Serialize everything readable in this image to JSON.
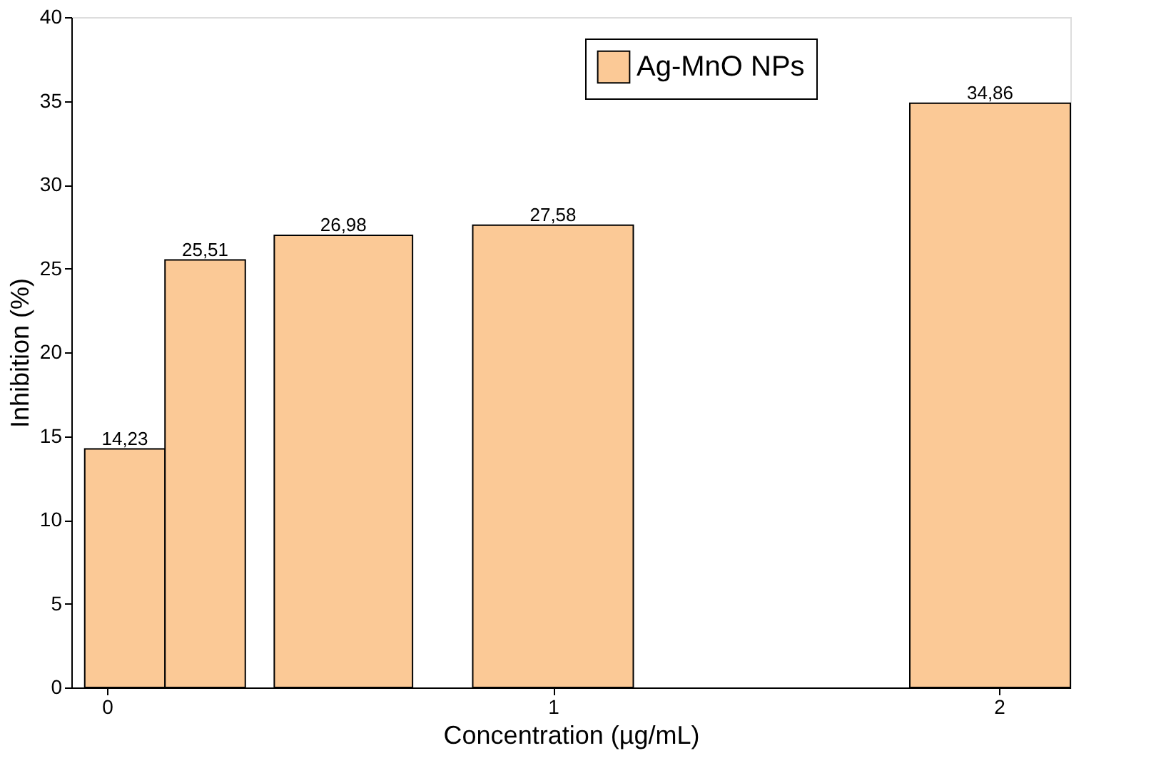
{
  "chart_data": {
    "type": "bar",
    "xlabel": "Concentration (µg/mL)",
    "ylabel": "Inhibition (%)",
    "x": [
      0.04,
      0.22,
      0.53,
      1.0,
      1.98
    ],
    "series": [
      {
        "name": "Ag-MnO NPs",
        "color": "#fbc996",
        "values": [
          14.23,
          25.51,
          26.98,
          27.58,
          34.86
        ],
        "value_labels": [
          "14,23",
          "25,51",
          "26,98",
          "27,58",
          "34,86"
        ]
      }
    ],
    "xlim": [
      -0.08,
      2.16
    ],
    "xticks": [
      0,
      1,
      2
    ],
    "ylim": [
      0,
      40
    ],
    "yticks": [
      0,
      5,
      10,
      15,
      20,
      25,
      30,
      35,
      40
    ],
    "grid": false,
    "legend": "top right"
  }
}
